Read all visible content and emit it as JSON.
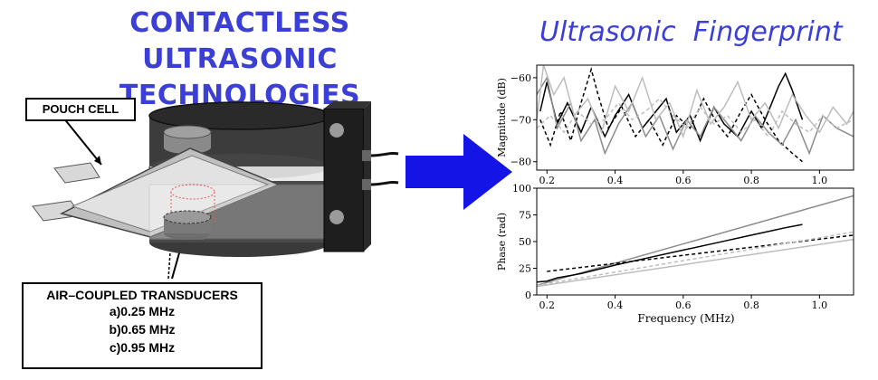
{
  "title_lines": [
    "CONTACTLESS ULTRASONIC",
    "TECHNOLOGIES"
  ],
  "subtitle": "Ultrasonic  Fingerprint",
  "labels": {
    "pouch_cell": "POUCH CELL",
    "transducers": "AIR–COUPLED TRANSDUCERS",
    "frequencies": [
      "a)0.25 MHz",
      "b)0.65 MHz",
      "c)0.95 MHz"
    ]
  },
  "colors": {
    "title": "#3b3fd6",
    "arrow": "#1414e6"
  },
  "chart_data": [
    {
      "type": "line",
      "ylabel": "Magnitude (dB)",
      "xlabel": "",
      "xlim": [
        0.17,
        1.1
      ],
      "ylim": [
        -82,
        -57
      ],
      "xticks": [
        0.2,
        0.4,
        0.6,
        0.8,
        1.0
      ],
      "xtick_labels": [
        "0.2",
        "0.4",
        "0.6",
        "0.8",
        "1.0"
      ],
      "yticks": [
        -60,
        -70,
        -80
      ],
      "ytick_labels": [
        "−60",
        "−70",
        "−80"
      ],
      "series": [
        {
          "color": "#000000",
          "dash": "",
          "x": [
            0.18,
            0.2,
            0.23,
            0.26,
            0.3,
            0.33,
            0.37,
            0.4,
            0.44,
            0.48,
            0.52,
            0.55,
            0.58,
            0.62,
            0.65,
            0.69,
            0.72,
            0.76,
            0.8,
            0.83,
            0.86,
            0.88,
            0.9,
            0.92,
            0.95
          ],
          "y": [
            -68,
            -61,
            -71,
            -66,
            -73,
            -67,
            -74,
            -69,
            -64,
            -72,
            -68,
            -65,
            -73,
            -69,
            -75,
            -67,
            -71,
            -74,
            -68,
            -72,
            -66,
            -62,
            -59,
            -63,
            -70
          ]
        },
        {
          "color": "#000000",
          "dash": "4,3",
          "x": [
            0.18,
            0.21,
            0.24,
            0.27,
            0.3,
            0.33,
            0.35,
            0.38,
            0.42,
            0.46,
            0.5,
            0.54,
            0.58,
            0.62,
            0.66,
            0.7,
            0.73,
            0.77,
            0.8,
            0.84,
            0.88,
            0.92,
            0.95
          ],
          "y": [
            -70,
            -76,
            -68,
            -75,
            -66,
            -58,
            -64,
            -72,
            -67,
            -74,
            -70,
            -76,
            -69,
            -72,
            -65,
            -71,
            -74,
            -68,
            -64,
            -70,
            -75,
            -78,
            -80
          ]
        },
        {
          "color": "#8c8c8c",
          "dash": "",
          "x": [
            0.17,
            0.2,
            0.23,
            0.27,
            0.3,
            0.34,
            0.37,
            0.41,
            0.45,
            0.49,
            0.53,
            0.57,
            0.61,
            0.65,
            0.69,
            0.73,
            0.77,
            0.81,
            0.85,
            0.89,
            0.93,
            0.97,
            1.01,
            1.05,
            1.1
          ],
          "y": [
            -64,
            -60,
            -72,
            -66,
            -75,
            -70,
            -78,
            -71,
            -66,
            -74,
            -69,
            -77,
            -70,
            -74,
            -67,
            -71,
            -75,
            -69,
            -73,
            -76,
            -70,
            -78,
            -69,
            -72,
            -74
          ]
        },
        {
          "color": "#bdbdbd",
          "dash": "",
          "x": [
            0.17,
            0.19,
            0.22,
            0.25,
            0.28,
            0.32,
            0.36,
            0.4,
            0.44,
            0.48,
            0.52,
            0.56,
            0.6,
            0.64,
            0.68,
            0.72,
            0.76,
            0.8,
            0.84,
            0.88,
            0.92,
            0.96,
            1.0,
            1.04,
            1.08,
            1.1
          ],
          "y": [
            -70,
            -57,
            -64,
            -60,
            -69,
            -65,
            -73,
            -62,
            -68,
            -60,
            -70,
            -66,
            -74,
            -63,
            -71,
            -67,
            -61,
            -70,
            -66,
            -72,
            -64,
            -69,
            -73,
            -67,
            -71,
            -68
          ]
        },
        {
          "color": "#bdbdbd",
          "dash": "4,3",
          "x": [
            0.17,
            0.21,
            0.25,
            0.29,
            0.33,
            0.37,
            0.41,
            0.45,
            0.49,
            0.53,
            0.57,
            0.61,
            0.65,
            0.69,
            0.73,
            0.77,
            0.81,
            0.85,
            0.89,
            0.93,
            0.97,
            1.01,
            1.05,
            1.1
          ],
          "y": [
            -72,
            -69,
            -73,
            -68,
            -71,
            -70,
            -66,
            -70,
            -68,
            -65,
            -69,
            -72,
            -67,
            -71,
            -69,
            -73,
            -70,
            -74,
            -68,
            -71,
            -73,
            -69,
            -72,
            -70
          ]
        }
      ]
    },
    {
      "type": "line",
      "ylabel": "Phase (rad)",
      "xlabel": "Frequency (MHz)",
      "xlim": [
        0.17,
        1.1
      ],
      "ylim": [
        0,
        100
      ],
      "xticks": [
        0.2,
        0.4,
        0.6,
        0.8,
        1.0
      ],
      "xtick_labels": [
        "0.2",
        "0.4",
        "0.6",
        "0.8",
        "1.0"
      ],
      "yticks": [
        0,
        25,
        50,
        75,
        100
      ],
      "ytick_labels": [
        "0",
        "25",
        "50",
        "75",
        "100"
      ],
      "series": [
        {
          "color": "#8c8c8c",
          "dash": "",
          "x": [
            0.17,
            1.1
          ],
          "y": [
            9,
            93
          ]
        },
        {
          "color": "#000000",
          "dash": "",
          "x": [
            0.17,
            0.2,
            0.23,
            0.3,
            0.4,
            0.5,
            0.6,
            0.7,
            0.8,
            0.9,
            0.95
          ],
          "y": [
            12,
            13,
            16,
            20,
            28,
            35,
            42,
            49,
            56,
            63,
            66
          ]
        },
        {
          "color": "#000000",
          "dash": "4,3",
          "x": [
            0.2,
            1.1
          ],
          "y": [
            22,
            56
          ]
        },
        {
          "color": "#bdbdbd",
          "dash": "4,3",
          "x": [
            0.17,
            1.1
          ],
          "y": [
            9,
            59
          ]
        },
        {
          "color": "#bdbdbd",
          "dash": "",
          "x": [
            0.17,
            1.1
          ],
          "y": [
            8,
            52
          ]
        }
      ]
    }
  ]
}
